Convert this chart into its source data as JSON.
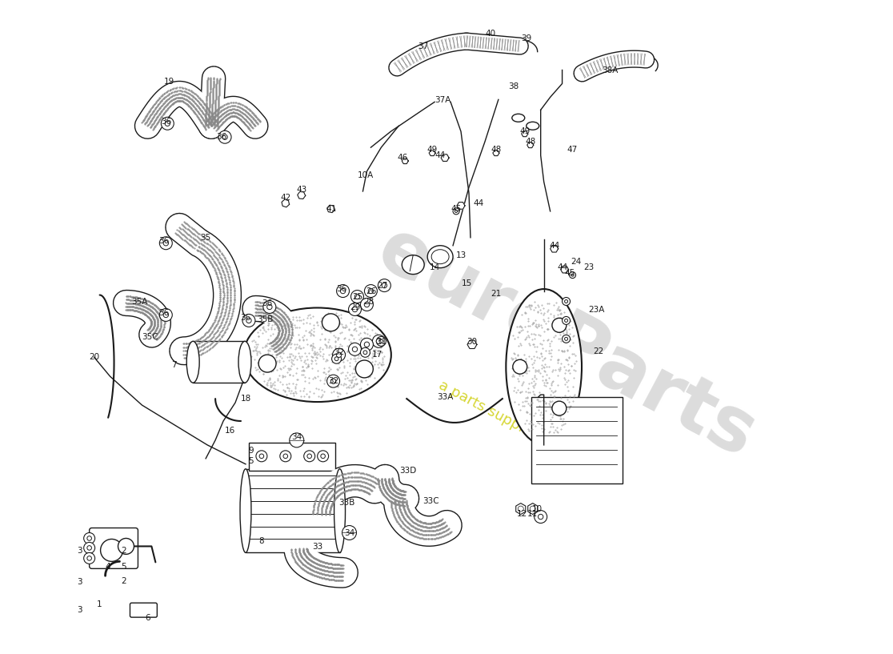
{
  "bg": "#ffffff",
  "lc": "#1a1a1a",
  "wm_color": "#b8b8b8",
  "wm_text": "euroParts",
  "wm_sub": "a parts supplier since 1985",
  "wm_yellow": "#d4d400",
  "fig_w": 11.0,
  "fig_h": 8.0,
  "dpi": 100,
  "labels": [
    [
      "1",
      115,
      748
    ],
    [
      "2",
      145,
      718
    ],
    [
      "2",
      145,
      680
    ],
    [
      "3",
      90,
      720
    ],
    [
      "3",
      90,
      680
    ],
    [
      "3",
      90,
      755
    ],
    [
      "4",
      125,
      700
    ],
    [
      "5",
      145,
      700
    ],
    [
      "5",
      305,
      568
    ],
    [
      "6",
      175,
      765
    ],
    [
      "7",
      208,
      448
    ],
    [
      "8",
      318,
      668
    ],
    [
      "9",
      305,
      555
    ],
    [
      "10",
      664,
      628
    ],
    [
      "10A",
      448,
      210
    ],
    [
      "11",
      658,
      634
    ],
    [
      "12",
      645,
      634
    ],
    [
      "13",
      568,
      310
    ],
    [
      "14",
      535,
      325
    ],
    [
      "15",
      575,
      345
    ],
    [
      "16",
      278,
      530
    ],
    [
      "17",
      463,
      435
    ],
    [
      "18",
      298,
      490
    ],
    [
      "19",
      202,
      92
    ],
    [
      "20",
      108,
      438
    ],
    [
      "21",
      612,
      358
    ],
    [
      "22",
      740,
      430
    ],
    [
      "23",
      728,
      325
    ],
    [
      "23A",
      738,
      378
    ],
    [
      "24",
      712,
      318
    ],
    [
      "25",
      438,
      362
    ],
    [
      "26",
      455,
      355
    ],
    [
      "27",
      470,
      348
    ],
    [
      "28",
      452,
      368
    ],
    [
      "29",
      435,
      375
    ],
    [
      "30",
      582,
      418
    ],
    [
      "31",
      468,
      418
    ],
    [
      "32",
      415,
      432
    ],
    [
      "32",
      408,
      468
    ],
    [
      "33",
      388,
      675
    ],
    [
      "33A",
      548,
      488
    ],
    [
      "33B",
      425,
      620
    ],
    [
      "33C",
      530,
      618
    ],
    [
      "33D",
      502,
      580
    ],
    [
      "34",
      362,
      538
    ],
    [
      "34",
      428,
      658
    ],
    [
      "35",
      248,
      288
    ],
    [
      "35A",
      165,
      368
    ],
    [
      "35B",
      322,
      390
    ],
    [
      "35C",
      178,
      412
    ],
    [
      "36",
      198,
      142
    ],
    [
      "36",
      268,
      162
    ],
    [
      "36",
      195,
      292
    ],
    [
      "36",
      195,
      382
    ],
    [
      "36",
      298,
      388
    ],
    [
      "36",
      325,
      370
    ],
    [
      "36",
      418,
      352
    ],
    [
      "37",
      521,
      48
    ],
    [
      "37A",
      545,
      115
    ],
    [
      "38",
      634,
      98
    ],
    [
      "38A",
      755,
      78
    ],
    [
      "39",
      650,
      38
    ],
    [
      "40",
      605,
      32
    ],
    [
      "41",
      405,
      252
    ],
    [
      "42",
      348,
      238
    ],
    [
      "43",
      368,
      228
    ],
    [
      "44",
      542,
      185
    ],
    [
      "44",
      590,
      245
    ],
    [
      "44",
      685,
      298
    ],
    [
      "44",
      695,
      325
    ],
    [
      "45",
      562,
      252
    ],
    [
      "45",
      705,
      332
    ],
    [
      "46",
      495,
      188
    ],
    [
      "47",
      708,
      178
    ],
    [
      "48",
      612,
      178
    ],
    [
      "48",
      655,
      168
    ],
    [
      "49",
      532,
      178
    ],
    [
      "49",
      648,
      155
    ]
  ]
}
